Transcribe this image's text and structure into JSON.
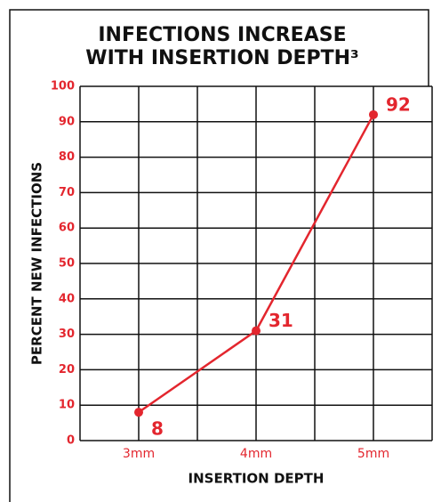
{
  "chart_data": {
    "type": "line",
    "title": [
      "INFECTIONS INCREASE",
      "WITH INSERTION DEPTH³"
    ],
    "x_label": "INSERTION DEPTH",
    "y_label": "PERCENT NEW INFECTIONS",
    "categories": [
      "3mm",
      "4mm",
      "5mm"
    ],
    "series": [
      {
        "name": "Percent new infections",
        "color": "#e3262e",
        "values": [
          8,
          31,
          92
        ]
      }
    ],
    "ylim": [
      0,
      100
    ],
    "yticks": [
      0,
      10,
      20,
      30,
      40,
      50,
      60,
      70,
      80,
      90,
      100
    ],
    "grid": true
  }
}
